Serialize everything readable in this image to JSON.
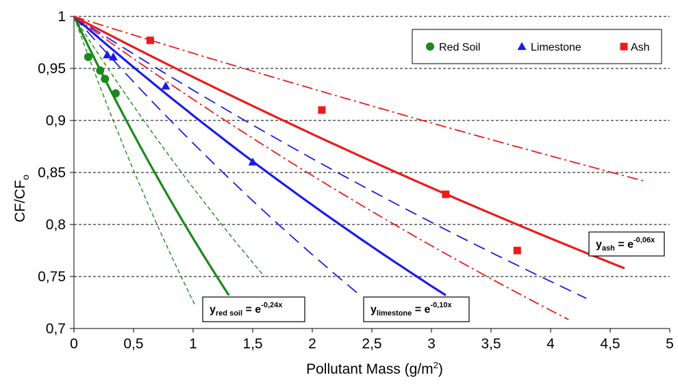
{
  "chart_data": {
    "type": "scatter",
    "xlabel": "Pollutant Mass (g/m",
    "xlabel_sup": "2",
    "xlabel_end": ")",
    "ylabel": "CF/CF",
    "ylabel_sub": "o",
    "xlim": [
      0,
      5
    ],
    "ylim": [
      0.7,
      1
    ],
    "x_ticks": [
      "0",
      "0,5",
      "1",
      "1,5",
      "2",
      "2,5",
      "3",
      "3,5",
      "4",
      "4,5",
      "5"
    ],
    "y_ticks": [
      "0,7",
      "0,75",
      "0,8",
      "0,85",
      "0,9",
      "0,95",
      "1"
    ],
    "grid": "horizontal dashed",
    "legend_position": "top-right",
    "series": [
      {
        "name": "Red Soil",
        "color": "#1a8a1a",
        "marker": "circle",
        "points": [
          [
            0.12,
            0.961
          ],
          [
            0.22,
            0.948
          ],
          [
            0.26,
            0.94
          ],
          [
            0.35,
            0.926
          ]
        ],
        "fit": {
          "k": 0.24,
          "x_end": 1.3
        },
        "bounds": [
          {
            "k": 0.32,
            "x_end": 1.02
          },
          {
            "k": 0.18,
            "x_end": 1.6
          }
        ]
      },
      {
        "name": "Limestone",
        "color": "#1a1aee",
        "marker": "triangle",
        "points": [
          [
            0.28,
            0.963
          ],
          [
            0.33,
            0.961
          ],
          [
            0.77,
            0.933
          ],
          [
            1.5,
            0.86
          ]
        ],
        "fit": {
          "k": 0.1,
          "x_end": 3.12
        },
        "bounds": [
          {
            "k": 0.13,
            "x_end": 2.38
          },
          {
            "k": 0.0735,
            "x_end": 4.3
          }
        ]
      },
      {
        "name": "Ash",
        "color": "#ee1a1a",
        "marker": "square",
        "points": [
          [
            0.64,
            0.977
          ],
          [
            2.08,
            0.91
          ],
          [
            3.12,
            0.829
          ],
          [
            3.72,
            0.775
          ]
        ],
        "fit": {
          "k": 0.06,
          "x_end": 4.62
        },
        "bounds": [
          {
            "k": 0.083,
            "x_end": 4.15
          },
          {
            "k": 0.036,
            "x_end": 4.8
          }
        ]
      }
    ],
    "equations": [
      {
        "base": "y",
        "sub": "red soil",
        "rhs": " = e",
        "sup": "-0,24x"
      },
      {
        "base": "y",
        "sub": "limestone",
        "rhs": " = e",
        "sup": "-0,10x"
      },
      {
        "base": "y",
        "sub": "ash",
        "rhs": " = e",
        "sup": "-0,06x"
      }
    ]
  }
}
